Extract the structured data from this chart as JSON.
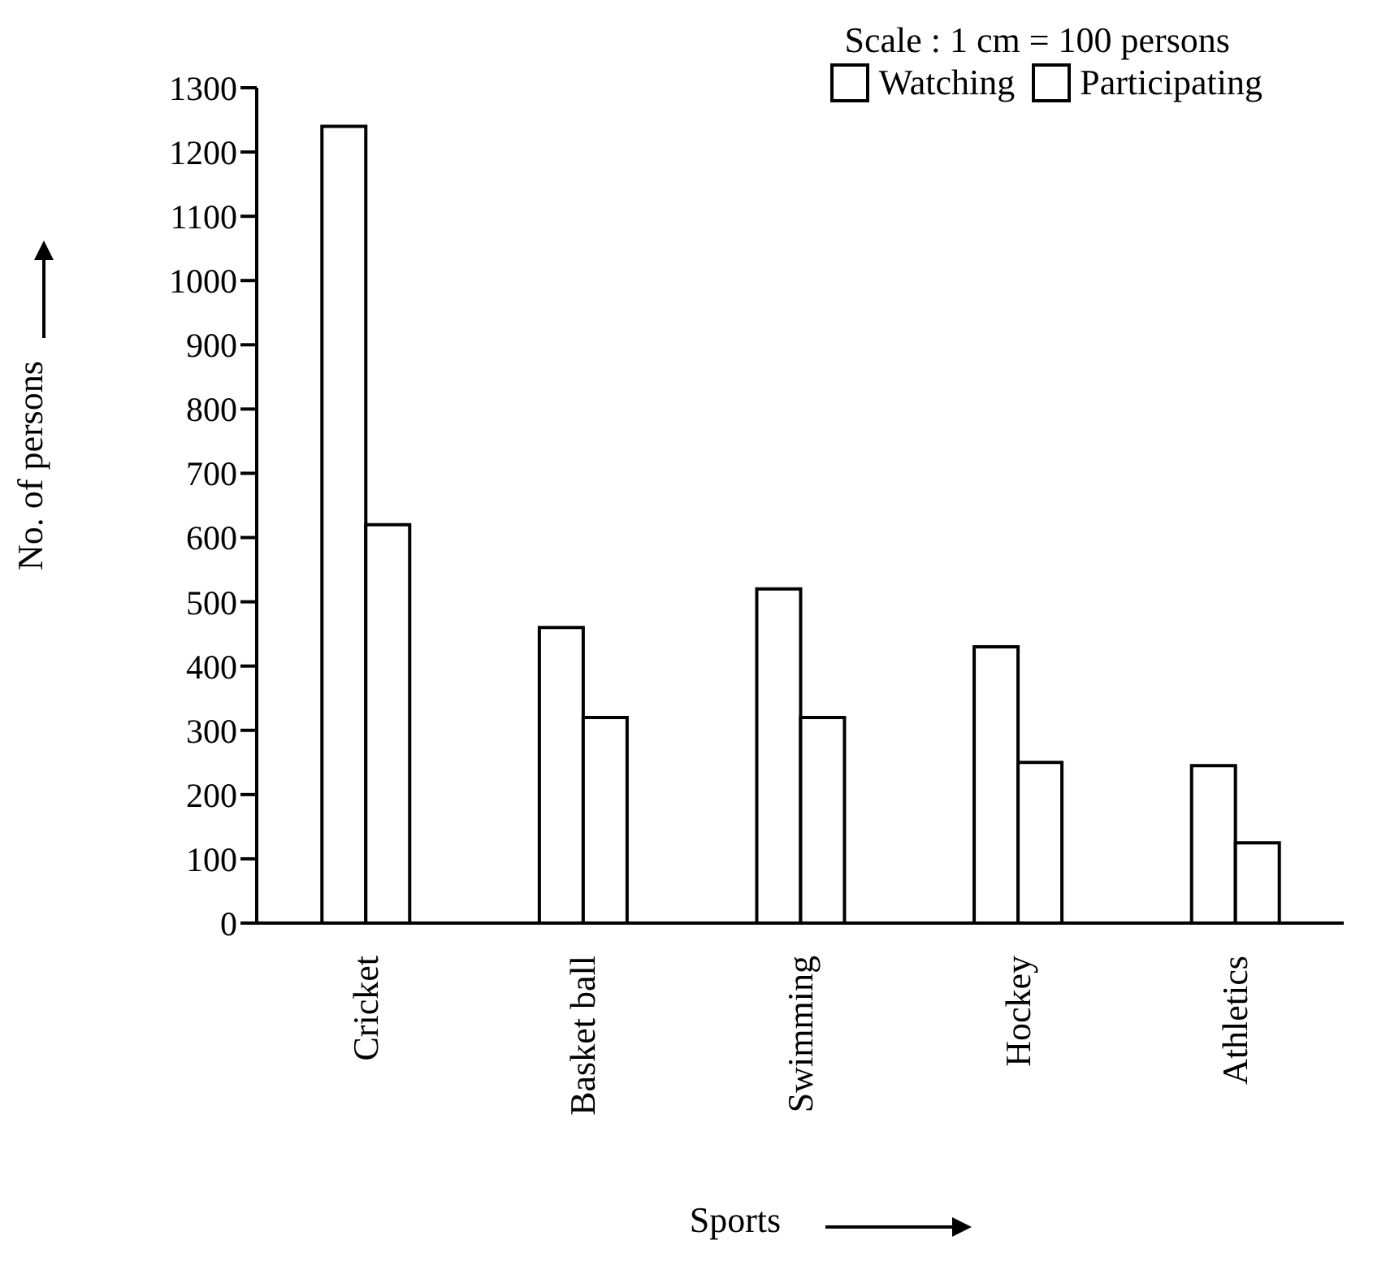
{
  "chart_data": {
    "type": "bar",
    "xlabel": "Sports",
    "ylabel": "No. of persons",
    "categories": [
      "Cricket",
      "Basket ball",
      "Swimming",
      "Hockey",
      "Athletics"
    ],
    "series": [
      {
        "name": "Watching",
        "color": "#ffffff",
        "values": [
          1240,
          460,
          520,
          430,
          245
        ]
      },
      {
        "name": "Participating",
        "color": "#ffffff",
        "values": [
          620,
          320,
          320,
          250,
          125
        ]
      }
    ],
    "ylim": [
      0,
      1300
    ],
    "yticks": [
      0,
      100,
      200,
      300,
      400,
      500,
      600,
      700,
      800,
      900,
      1000,
      1100,
      1200,
      1300
    ],
    "legend": "top right",
    "grid": false,
    "annotations": [
      "Scale : 1 cm = 100 persons"
    ]
  }
}
